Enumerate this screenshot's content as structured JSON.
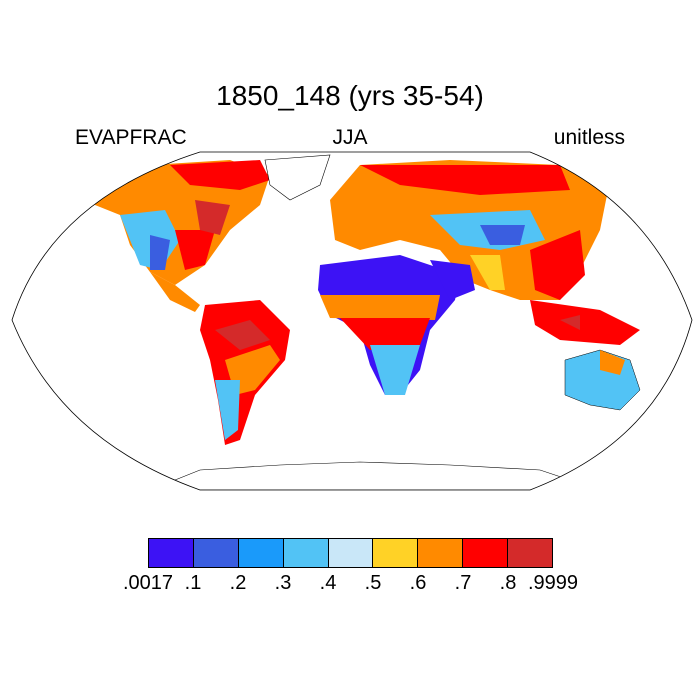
{
  "title": "1850_148 (yrs 35-54)",
  "left_label": "EVAPFRAC",
  "center_label": "JJA",
  "right_label": "unitless",
  "colorbar": {
    "labels": [
      ".0017",
      ".1",
      ".2",
      ".3",
      ".4",
      ".5",
      ".6",
      ".7",
      ".8",
      ".9999"
    ],
    "colors": [
      "#3d12f5",
      "#3a5ee0",
      "#1a9afa",
      "#52c3f5",
      "#c9e7f8",
      "#ffd226",
      "#ff8a00",
      "#ff0000",
      "#d42a2a"
    ]
  }
}
